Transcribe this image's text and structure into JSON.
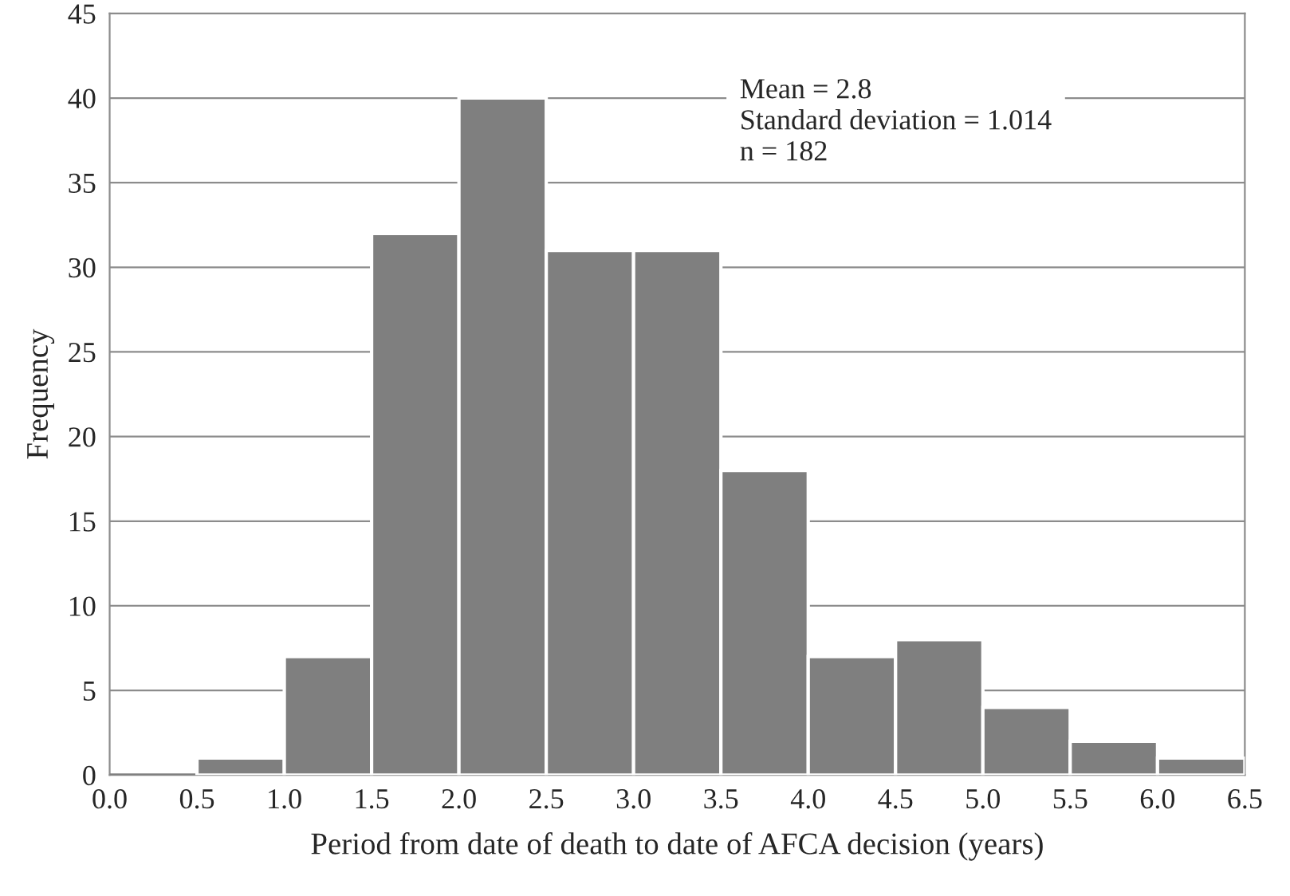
{
  "chart_data": {
    "type": "histogram",
    "xlabel": "Period from date of death to date of AFCA decision (years)",
    "ylabel": "Frequency",
    "bins": [
      0.0,
      0.5,
      1.0,
      1.5,
      2.0,
      2.5,
      3.0,
      3.5,
      4.0,
      4.5,
      5.0,
      5.5,
      6.0,
      6.5
    ],
    "values": [
      0,
      1,
      7,
      32,
      40,
      31,
      31,
      18,
      7,
      8,
      4,
      2,
      1
    ],
    "color": "#7f7f7f",
    "xlim": [
      0.0,
      6.5
    ],
    "xticks": [
      {
        "value": 0.0,
        "label": "0.0"
      },
      {
        "value": 0.5,
        "label": "0.5"
      },
      {
        "value": 1.0,
        "label": "1.0"
      },
      {
        "value": 1.5,
        "label": "1.5"
      },
      {
        "value": 2.0,
        "label": "2.0"
      },
      {
        "value": 2.5,
        "label": "2.5"
      },
      {
        "value": 3.0,
        "label": "3.0"
      },
      {
        "value": 3.5,
        "label": "3.5"
      },
      {
        "value": 4.0,
        "label": "4.0"
      },
      {
        "value": 4.5,
        "label": "4.5"
      },
      {
        "value": 5.0,
        "label": "5.0"
      },
      {
        "value": 5.5,
        "label": "5.5"
      },
      {
        "value": 6.0,
        "label": "6.0"
      },
      {
        "value": 6.5,
        "label": "6.5"
      }
    ],
    "ylim": [
      0,
      45
    ],
    "yticks": [
      0,
      5,
      10,
      15,
      20,
      25,
      30,
      35,
      40,
      45
    ],
    "grid": "y",
    "annotations": [
      "Mean = 2.8",
      "Standard deviation = 1.014",
      "n = 182"
    ]
  }
}
